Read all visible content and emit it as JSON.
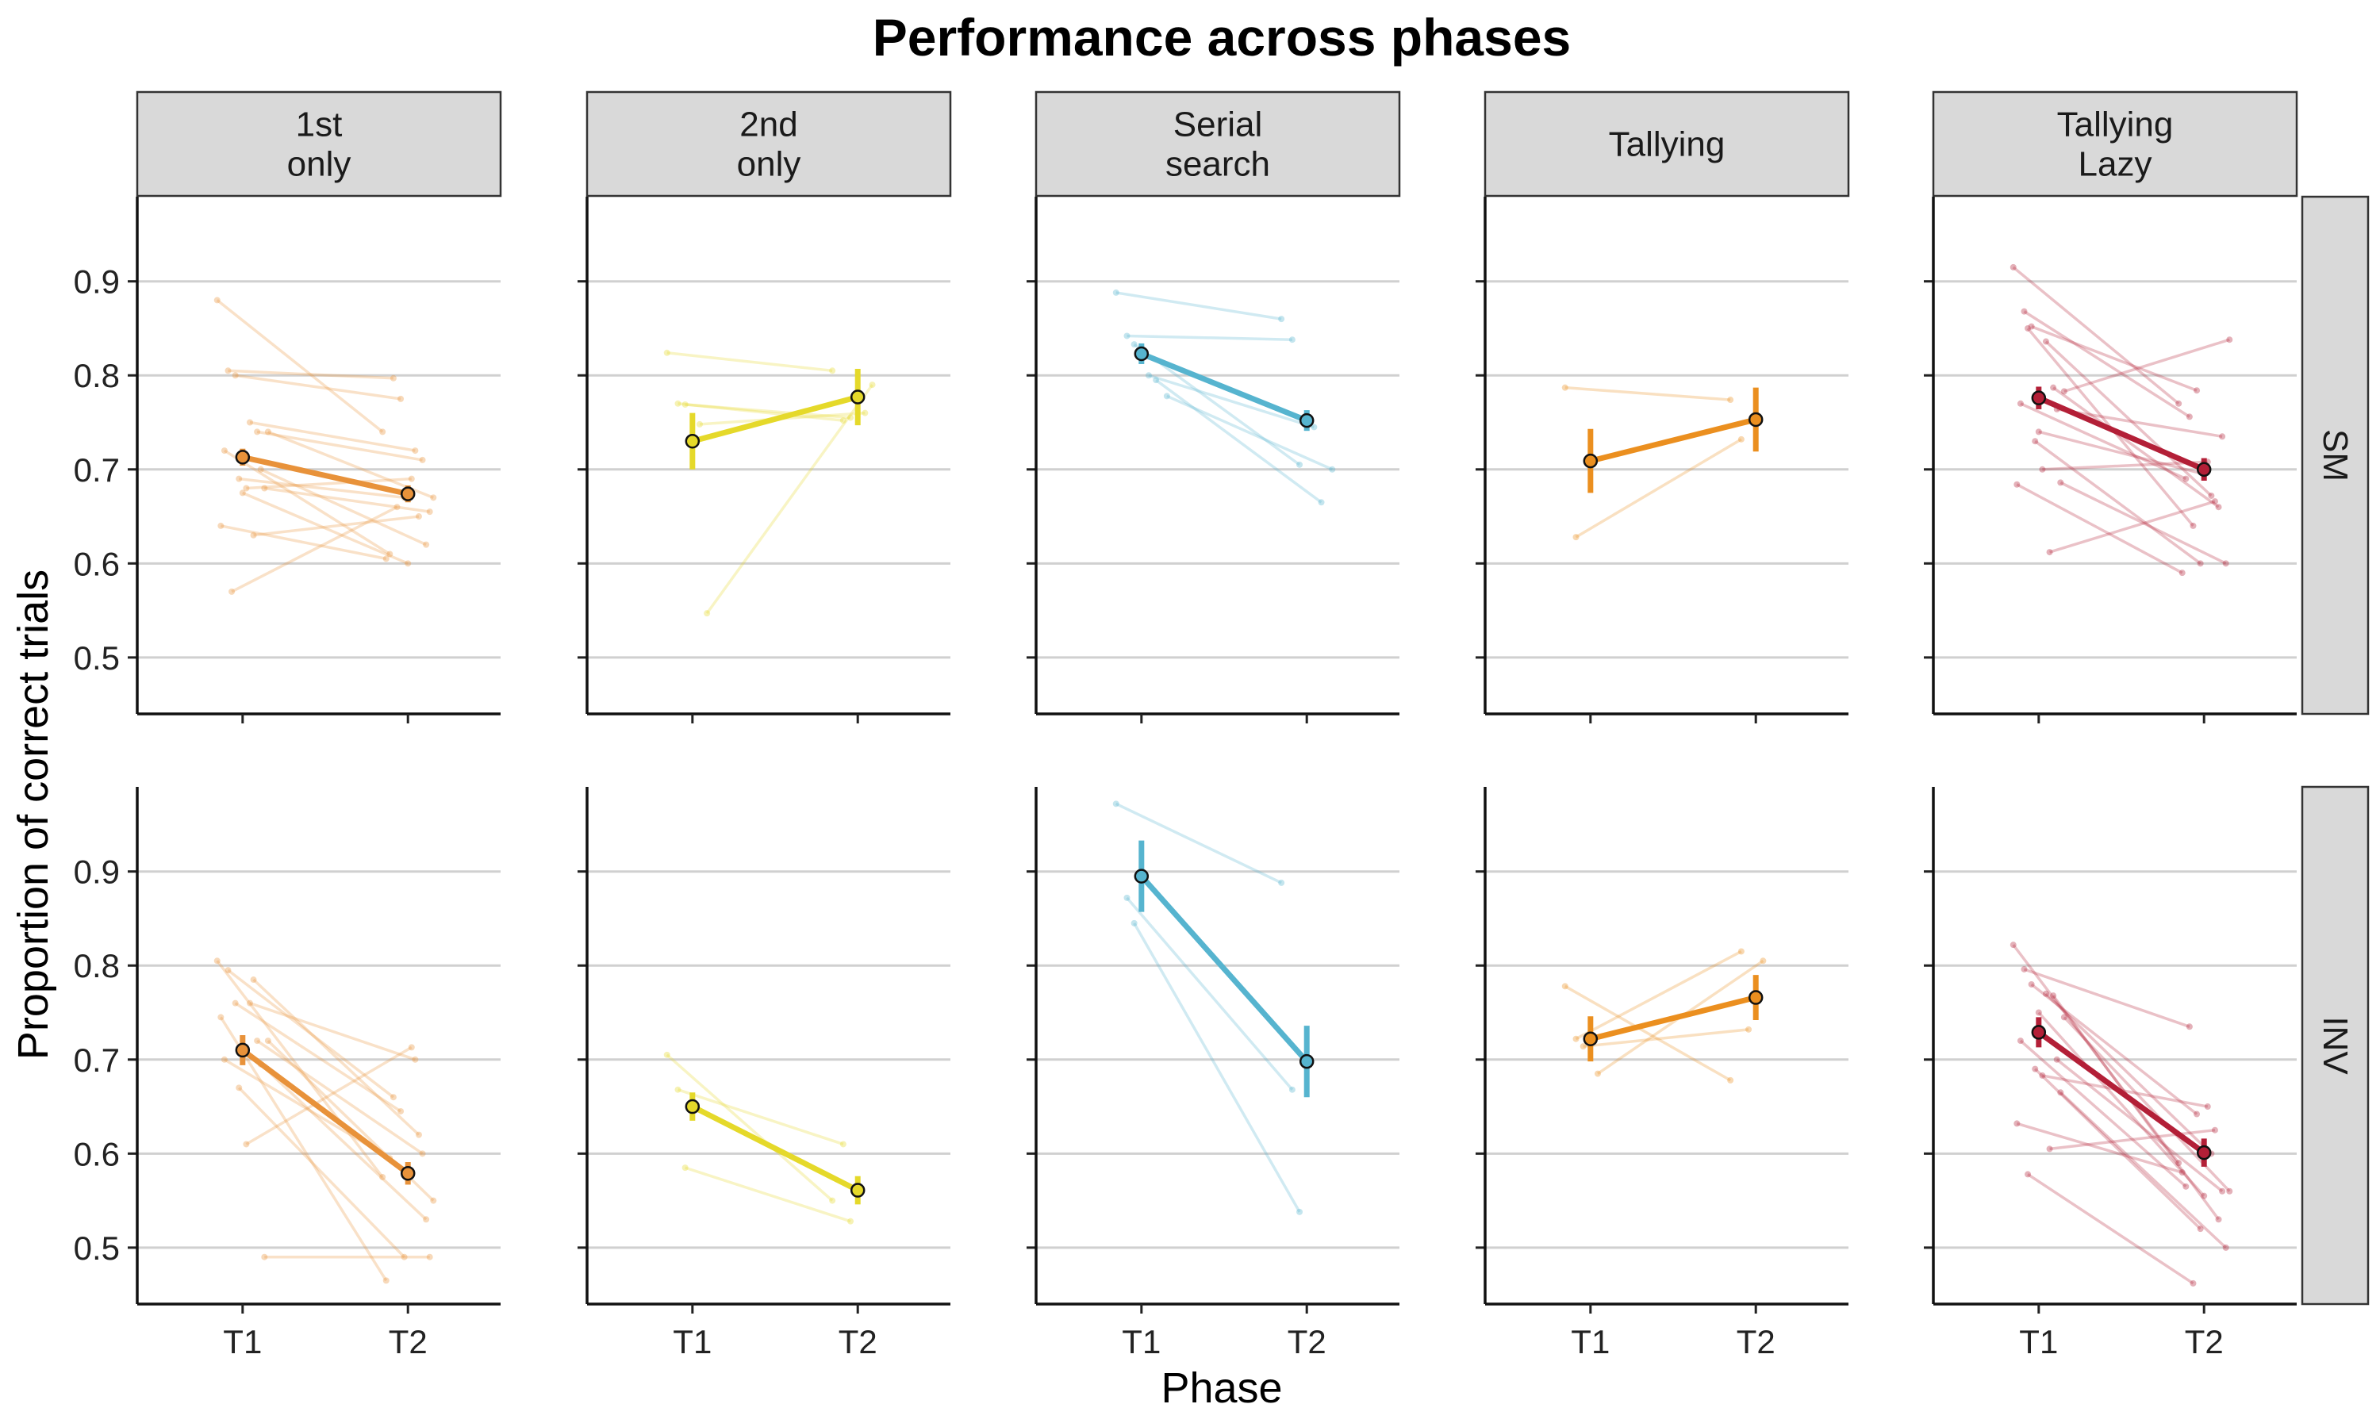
{
  "chart_data": {
    "type": "line",
    "title": "Performance across phases",
    "xlabel": "Phase",
    "ylabel": "Proportion of correct trials",
    "x_categories": [
      "T1",
      "T2"
    ],
    "ylim": [
      0.44,
      0.99
    ],
    "y_ticks": [
      0.5,
      0.6,
      0.7,
      0.8,
      0.9
    ],
    "y_tick_labels": [
      "0.5",
      "0.6",
      "0.7",
      "0.8",
      "0.9"
    ],
    "grid": "horizontal major",
    "column_facets": [
      "1st\nonly",
      "2nd\nonly",
      "Serial\nsearch",
      "Tallying",
      "Tallying\nLazy"
    ],
    "row_facets": [
      "SM",
      "INV"
    ],
    "colors": [
      "#E8923A",
      "#E5D92A",
      "#56B4CF",
      "#EB8F1F",
      "#B31F37"
    ],
    "panels": [
      {
        "row": 0,
        "col": 0,
        "mean": [
          0.713,
          0.674
        ],
        "err": [
          0.009,
          0.009
        ],
        "individuals": [
          [
            0.88,
            0.74
          ],
          [
            0.805,
            0.797
          ],
          [
            0.8,
            0.775
          ],
          [
            0.75,
            0.72
          ],
          [
            0.74,
            0.71
          ],
          [
            0.74,
            0.67
          ],
          [
            0.72,
            0.61
          ],
          [
            0.7,
            0.62
          ],
          [
            0.69,
            0.67
          ],
          [
            0.68,
            0.69
          ],
          [
            0.68,
            0.655
          ],
          [
            0.64,
            0.605
          ],
          [
            0.63,
            0.65
          ],
          [
            0.57,
            0.66
          ],
          [
            0.675,
            0.6
          ]
        ]
      },
      {
        "row": 0,
        "col": 1,
        "mean": [
          0.73,
          0.777
        ],
        "err": [
          0.03,
          0.03
        ],
        "individuals": [
          [
            0.824,
            0.805
          ],
          [
            0.77,
            0.752
          ],
          [
            0.769,
            0.755
          ],
          [
            0.748,
            0.76
          ],
          [
            0.547,
            0.79
          ]
        ]
      },
      {
        "row": 0,
        "col": 2,
        "mean": [
          0.823,
          0.752
        ],
        "err": [
          0.011,
          0.011
        ],
        "individuals": [
          [
            0.888,
            0.86
          ],
          [
            0.842,
            0.838
          ],
          [
            0.833,
            0.705
          ],
          [
            0.8,
            0.745
          ],
          [
            0.795,
            0.665
          ],
          [
            0.778,
            0.7
          ]
        ]
      },
      {
        "row": 0,
        "col": 3,
        "mean": [
          0.709,
          0.753
        ],
        "err": [
          0.034,
          0.034
        ],
        "individuals": [
          [
            0.787,
            0.774
          ],
          [
            0.628,
            0.732
          ]
        ]
      },
      {
        "row": 0,
        "col": 4,
        "mean": [
          0.776,
          0.7
        ],
        "err": [
          0.012,
          0.012
        ],
        "individuals": [
          [
            0.915,
            0.77
          ],
          [
            0.868,
            0.756
          ],
          [
            0.852,
            0.784
          ],
          [
            0.836,
            0.672
          ],
          [
            0.787,
            0.66
          ],
          [
            0.783,
            0.838
          ],
          [
            0.77,
            0.69
          ],
          [
            0.764,
            0.735
          ],
          [
            0.73,
            0.6
          ],
          [
            0.7,
            0.708
          ],
          [
            0.686,
            0.6
          ],
          [
            0.684,
            0.59
          ],
          [
            0.612,
            0.666
          ],
          [
            0.85,
            0.64
          ],
          [
            0.74,
            0.695
          ]
        ]
      },
      {
        "row": 1,
        "col": 0,
        "mean": [
          0.71,
          0.579
        ],
        "err": [
          0.016,
          0.012
        ],
        "individuals": [
          [
            0.805,
            0.575
          ],
          [
            0.795,
            0.66
          ],
          [
            0.76,
            0.645
          ],
          [
            0.76,
            0.7
          ],
          [
            0.72,
            0.6
          ],
          [
            0.72,
            0.55
          ],
          [
            0.7,
            0.595
          ],
          [
            0.695,
            0.53
          ],
          [
            0.67,
            0.49
          ],
          [
            0.61,
            0.713
          ],
          [
            0.49,
            0.49
          ],
          [
            0.745,
            0.465
          ],
          [
            0.785,
            0.62
          ]
        ]
      },
      {
        "row": 1,
        "col": 1,
        "mean": [
          0.65,
          0.561
        ],
        "err": [
          0.015,
          0.015
        ],
        "individuals": [
          [
            0.705,
            0.55
          ],
          [
            0.668,
            0.61
          ],
          [
            0.585,
            0.528
          ]
        ]
      },
      {
        "row": 1,
        "col": 2,
        "mean": [
          0.895,
          0.698
        ],
        "err": [
          0.038,
          0.038
        ],
        "individuals": [
          [
            0.972,
            0.888
          ],
          [
            0.872,
            0.668
          ],
          [
            0.845,
            0.538
          ]
        ]
      },
      {
        "row": 1,
        "col": 3,
        "mean": [
          0.722,
          0.766
        ],
        "err": [
          0.024,
          0.024
        ],
        "individuals": [
          [
            0.778,
            0.678
          ],
          [
            0.722,
            0.815
          ],
          [
            0.714,
            0.732
          ],
          [
            0.685,
            0.805
          ]
        ]
      },
      {
        "row": 1,
        "col": 4,
        "mean": [
          0.729,
          0.601
        ],
        "err": [
          0.016,
          0.015
        ],
        "individuals": [
          [
            0.822,
            0.59
          ],
          [
            0.796,
            0.735
          ],
          [
            0.78,
            0.642
          ],
          [
            0.77,
            0.6
          ],
          [
            0.768,
            0.53
          ],
          [
            0.745,
            0.56
          ],
          [
            0.72,
            0.565
          ],
          [
            0.7,
            0.56
          ],
          [
            0.69,
            0.52
          ],
          [
            0.683,
            0.65
          ],
          [
            0.665,
            0.5
          ],
          [
            0.632,
            0.58
          ],
          [
            0.605,
            0.625
          ],
          [
            0.578,
            0.462
          ],
          [
            0.75,
            0.555
          ]
        ]
      }
    ]
  }
}
